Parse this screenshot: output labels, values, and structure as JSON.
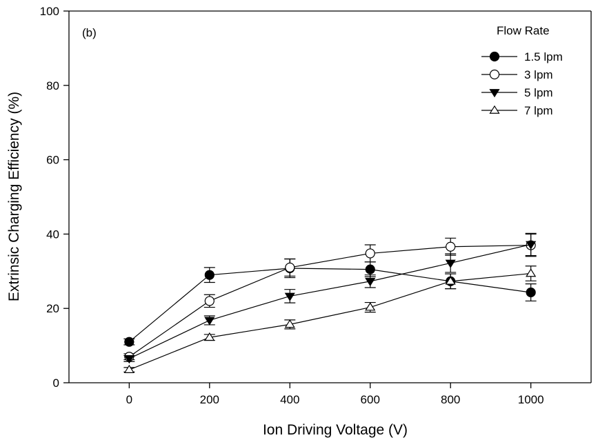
{
  "chart_data": {
    "type": "line",
    "panel_label": "(b)",
    "xlabel": "Ion Driving Voltage (V)",
    "ylabel": "Extrinsic Charging Efficiency (%)",
    "x": [
      0,
      200,
      400,
      600,
      800,
      1000
    ],
    "xlim": [
      -150,
      1150
    ],
    "ylim": [
      0,
      100
    ],
    "xticks": [
      0,
      200,
      400,
      600,
      800,
      1000
    ],
    "yticks": [
      0,
      20,
      40,
      60,
      80,
      100
    ],
    "legend_title": "Flow Rate",
    "legend_position": "top-right",
    "grid": false,
    "series": [
      {
        "name": "1.5 lpm",
        "marker": "circle-filled",
        "values": [
          11,
          29,
          30.8,
          30.5,
          27.3,
          24.3
        ],
        "errors": [
          0.8,
          2.0,
          2.5,
          2.0,
          2.0,
          2.3
        ]
      },
      {
        "name": "3 lpm",
        "marker": "circle-open",
        "values": [
          7,
          22,
          31,
          34.8,
          36.6,
          37
        ],
        "errors": [
          0.8,
          1.7,
          2.3,
          2.3,
          2.3,
          3.0
        ]
      },
      {
        "name": "5 lpm",
        "marker": "triangle-down-filled",
        "values": [
          6.5,
          16.8,
          23.3,
          27.3,
          32.2,
          37.2
        ],
        "errors": [
          0.8,
          1.2,
          1.8,
          1.7,
          2.5,
          3.0
        ]
      },
      {
        "name": "7 lpm",
        "marker": "triangle-up-open",
        "values": [
          3.5,
          12.2,
          15.7,
          20.3,
          27.3,
          29.4
        ],
        "errors": [
          0.6,
          0.8,
          1.2,
          1.3,
          2.0,
          2.0
        ]
      }
    ]
  }
}
